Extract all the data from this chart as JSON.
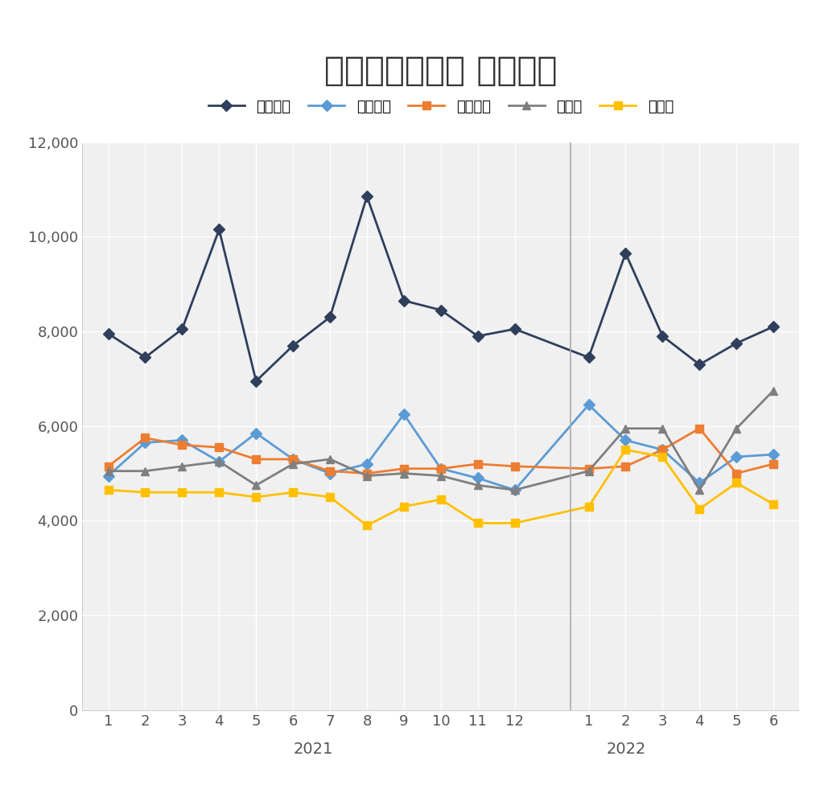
{
  "title": "新築マンション 販売価格",
  "series": {
    "東京区部": {
      "color": "#2f3f5c",
      "marker": "D",
      "values_2021": [
        7950,
        7450,
        8050,
        10150,
        6950,
        7700,
        8300,
        10850,
        8650,
        8450,
        7900,
        8050
      ],
      "values_2022": [
        7450,
        9650,
        7900,
        7300,
        7750,
        8100
      ]
    },
    "東京都下": {
      "color": "#5b9bd5",
      "marker": "D",
      "values_2021": [
        4950,
        5650,
        5700,
        5250,
        5850,
        5300,
        5000,
        5200,
        6250,
        5100,
        4900,
        4650
      ],
      "values_2022": [
        6450,
        5700,
        5500,
        4800,
        5350,
        5400
      ]
    },
    "神奈川県": {
      "color": "#ed7d31",
      "marker": "s",
      "values_2021": [
        5150,
        5750,
        5600,
        5550,
        5300,
        5300,
        5050,
        5000,
        5100,
        5100,
        5200,
        5150
      ],
      "values_2022": [
        5100,
        5150,
        5500,
        5950,
        5000,
        5200
      ]
    },
    "埼玉県": {
      "color": "#7f7f7f",
      "marker": "^",
      "values_2021": [
        5050,
        5050,
        5150,
        5250,
        4750,
        5200,
        5300,
        4950,
        5000,
        4950,
        4750,
        4650
      ],
      "values_2022": [
        5050,
        5950,
        5950,
        4650,
        5950,
        6750
      ]
    },
    "千葉県": {
      "color": "#ffc000",
      "marker": "s",
      "values_2021": [
        4650,
        4600,
        4600,
        4600,
        4500,
        4600,
        4500,
        3900,
        4300,
        4450,
        3950,
        3950
      ],
      "values_2022": [
        4300,
        5500,
        5350,
        4250,
        4800,
        4350
      ]
    }
  },
  "ylim": [
    0,
    12000
  ],
  "yticks": [
    0,
    2000,
    4000,
    6000,
    8000,
    10000,
    12000
  ],
  "background_color": "#ffffff",
  "plot_bg_color": "#f0f0f0",
  "grid_color": "#ffffff",
  "title_fontsize": 30,
  "legend_fontsize": 13,
  "tick_fontsize": 13
}
